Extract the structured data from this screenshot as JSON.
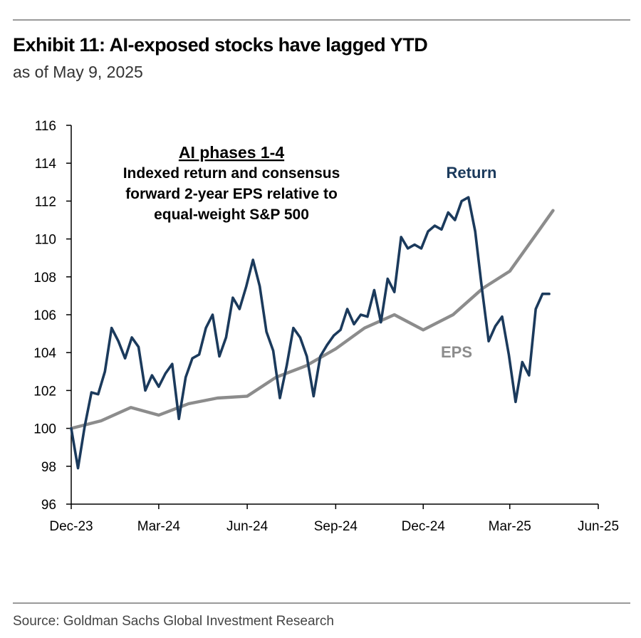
{
  "header": {
    "title": "Exhibit 11: AI-exposed stocks have lagged YTD",
    "subtitle": "as of May 9, 2025"
  },
  "footer": {
    "source": "Source: Goldman Sachs Global Investment Research"
  },
  "colors": {
    "return": "#1b3a5c",
    "eps": "#8c8c8c",
    "axis": "#000000",
    "rule": "#9a9a9a"
  },
  "chart_data": {
    "type": "line",
    "title": "",
    "xlabel": "",
    "ylabel": "",
    "ylim": [
      96,
      116
    ],
    "yticks": [
      96,
      98,
      100,
      102,
      104,
      106,
      108,
      110,
      112,
      114,
      116
    ],
    "xlim": [
      "2023-12-01",
      "2025-06-01"
    ],
    "xticks": [
      {
        "date": "2023-12-01",
        "label": "Dec-23"
      },
      {
        "date": "2024-03-01",
        "label": "Mar-24"
      },
      {
        "date": "2024-06-01",
        "label": "Jun-24"
      },
      {
        "date": "2024-09-01",
        "label": "Sep-24"
      },
      {
        "date": "2024-12-01",
        "label": "Dec-24"
      },
      {
        "date": "2025-03-01",
        "label": "Mar-25"
      },
      {
        "date": "2025-06-01",
        "label": "Jun-25"
      }
    ],
    "grid": false,
    "annotation": {
      "heading": "AI phases 1-4",
      "lines": [
        "Indexed return and consensus",
        "forward 2-year EPS relative to",
        "equal-weight S&P 500"
      ]
    },
    "series": [
      {
        "name": "Return",
        "color": "#1b3a5c",
        "points": [
          [
            "2023-12-01",
            100.0
          ],
          [
            "2023-12-08",
            97.9
          ],
          [
            "2023-12-15",
            100.1
          ],
          [
            "2023-12-22",
            101.9
          ],
          [
            "2023-12-29",
            101.8
          ],
          [
            "2024-01-05",
            103.0
          ],
          [
            "2024-01-12",
            105.3
          ],
          [
            "2024-01-19",
            104.6
          ],
          [
            "2024-01-26",
            103.7
          ],
          [
            "2024-02-02",
            104.8
          ],
          [
            "2024-02-09",
            104.3
          ],
          [
            "2024-02-16",
            102.0
          ],
          [
            "2024-02-23",
            102.8
          ],
          [
            "2024-03-01",
            102.2
          ],
          [
            "2024-03-08",
            102.9
          ],
          [
            "2024-03-15",
            103.4
          ],
          [
            "2024-03-22",
            100.5
          ],
          [
            "2024-03-29",
            102.7
          ],
          [
            "2024-04-05",
            103.7
          ],
          [
            "2024-04-12",
            103.9
          ],
          [
            "2024-04-19",
            105.3
          ],
          [
            "2024-04-26",
            106.0
          ],
          [
            "2024-05-03",
            103.8
          ],
          [
            "2024-05-10",
            104.8
          ],
          [
            "2024-05-17",
            106.9
          ],
          [
            "2024-05-24",
            106.3
          ],
          [
            "2024-05-31",
            107.5
          ],
          [
            "2024-06-07",
            108.9
          ],
          [
            "2024-06-14",
            107.5
          ],
          [
            "2024-06-21",
            105.1
          ],
          [
            "2024-06-28",
            104.1
          ],
          [
            "2024-07-05",
            101.6
          ],
          [
            "2024-07-12",
            103.3
          ],
          [
            "2024-07-19",
            105.3
          ],
          [
            "2024-07-26",
            104.8
          ],
          [
            "2024-08-02",
            103.8
          ],
          [
            "2024-08-09",
            101.7
          ],
          [
            "2024-08-16",
            103.8
          ],
          [
            "2024-08-23",
            104.4
          ],
          [
            "2024-08-30",
            104.9
          ],
          [
            "2024-09-06",
            105.2
          ],
          [
            "2024-09-13",
            106.3
          ],
          [
            "2024-09-20",
            105.5
          ],
          [
            "2024-09-27",
            106.0
          ],
          [
            "2024-10-04",
            105.9
          ],
          [
            "2024-10-11",
            107.3
          ],
          [
            "2024-10-18",
            105.6
          ],
          [
            "2024-10-25",
            107.9
          ],
          [
            "2024-11-01",
            107.2
          ],
          [
            "2024-11-08",
            110.1
          ],
          [
            "2024-11-15",
            109.5
          ],
          [
            "2024-11-22",
            109.7
          ],
          [
            "2024-11-29",
            109.5
          ],
          [
            "2024-12-06",
            110.4
          ],
          [
            "2024-12-13",
            110.7
          ],
          [
            "2024-12-20",
            110.5
          ],
          [
            "2024-12-27",
            111.4
          ],
          [
            "2025-01-03",
            111.0
          ],
          [
            "2025-01-10",
            112.0
          ],
          [
            "2025-01-17",
            112.2
          ],
          [
            "2025-01-24",
            110.4
          ],
          [
            "2025-01-31",
            107.4
          ],
          [
            "2025-02-07",
            104.6
          ],
          [
            "2025-02-14",
            105.4
          ],
          [
            "2025-02-21",
            105.9
          ],
          [
            "2025-02-28",
            103.9
          ],
          [
            "2025-03-07",
            101.4
          ],
          [
            "2025-03-14",
            103.5
          ],
          [
            "2025-03-21",
            102.8
          ],
          [
            "2025-03-28",
            106.3
          ],
          [
            "2025-04-04",
            107.1
          ],
          [
            "2025-04-11",
            107.1
          ]
        ]
      },
      {
        "name": "EPS",
        "color": "#8c8c8c",
        "points": [
          [
            "2023-12-01",
            100.0
          ],
          [
            "2024-01-01",
            100.4
          ],
          [
            "2024-02-01",
            101.1
          ],
          [
            "2024-03-01",
            100.7
          ],
          [
            "2024-04-01",
            101.3
          ],
          [
            "2024-05-01",
            101.6
          ],
          [
            "2024-06-01",
            101.7
          ],
          [
            "2024-07-01",
            102.7
          ],
          [
            "2024-08-01",
            103.3
          ],
          [
            "2024-09-01",
            104.2
          ],
          [
            "2024-10-01",
            105.3
          ],
          [
            "2024-11-01",
            106.0
          ],
          [
            "2024-12-01",
            105.2
          ],
          [
            "2025-01-01",
            106.0
          ],
          [
            "2025-02-01",
            107.4
          ],
          [
            "2025-03-01",
            108.3
          ],
          [
            "2025-04-01",
            110.5
          ],
          [
            "2025-04-15",
            111.5
          ]
        ]
      }
    ]
  }
}
